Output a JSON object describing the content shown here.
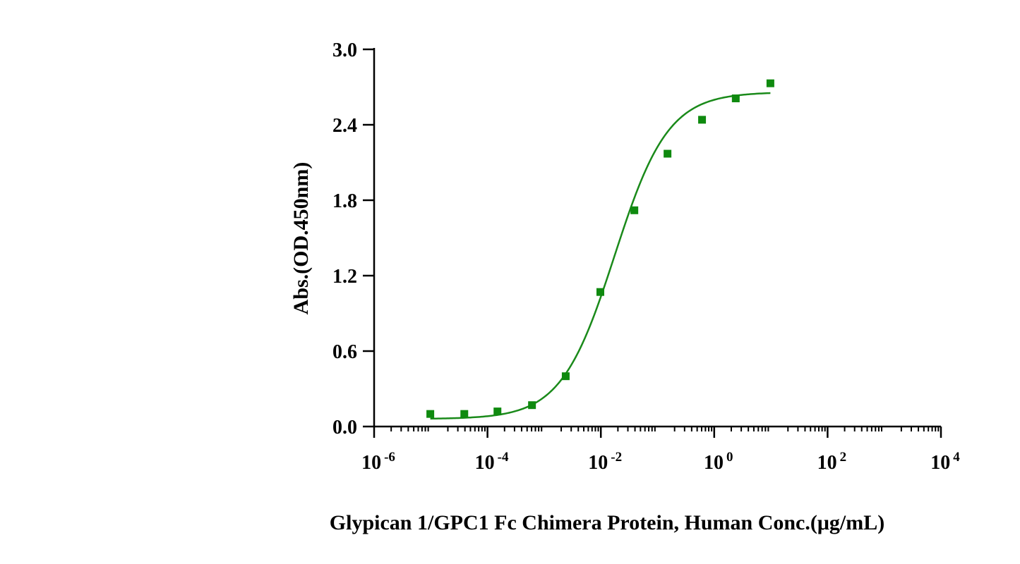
{
  "chart_data": {
    "type": "scatter",
    "title": "",
    "xlabel": "Glypican 1/GPC1 Fc Chimera Protein, Human Conc.(μg/mL)",
    "ylabel": "Abs.(OD.450nm)",
    "x_scale": "log",
    "xlim": [
      1e-06,
      10000
    ],
    "ylim": [
      0,
      3.0
    ],
    "x_ticks": [
      {
        "base": "10",
        "exp": "-6"
      },
      {
        "base": "10",
        "exp": "-4"
      },
      {
        "base": "10",
        "exp": "-2"
      },
      {
        "base": "10",
        "exp": "0"
      },
      {
        "base": "10",
        "exp": "2"
      },
      {
        "base": "10",
        "exp": "4"
      }
    ],
    "y_ticks": [
      "0.0",
      "0.6",
      "1.2",
      "1.8",
      "2.4",
      "3.0"
    ],
    "grid": false,
    "legend": "none",
    "color": "#1a8a1a",
    "marker_color": "#0f8a0f",
    "series": [
      {
        "x": [
          9.8e-06,
          3.9e-05,
          0.00015,
          0.00061,
          0.0024,
          0.0098,
          0.039,
          0.15,
          0.61,
          2.4,
          9.8
        ],
        "y": [
          0.1,
          0.1,
          0.12,
          0.17,
          0.4,
          1.07,
          1.72,
          2.17,
          2.44,
          2.61,
          2.73
        ]
      }
    ],
    "fit": {
      "model": "4PL",
      "bottom": 0.06,
      "top": 2.66,
      "ec50": 0.0175,
      "hill": 0.92
    }
  }
}
